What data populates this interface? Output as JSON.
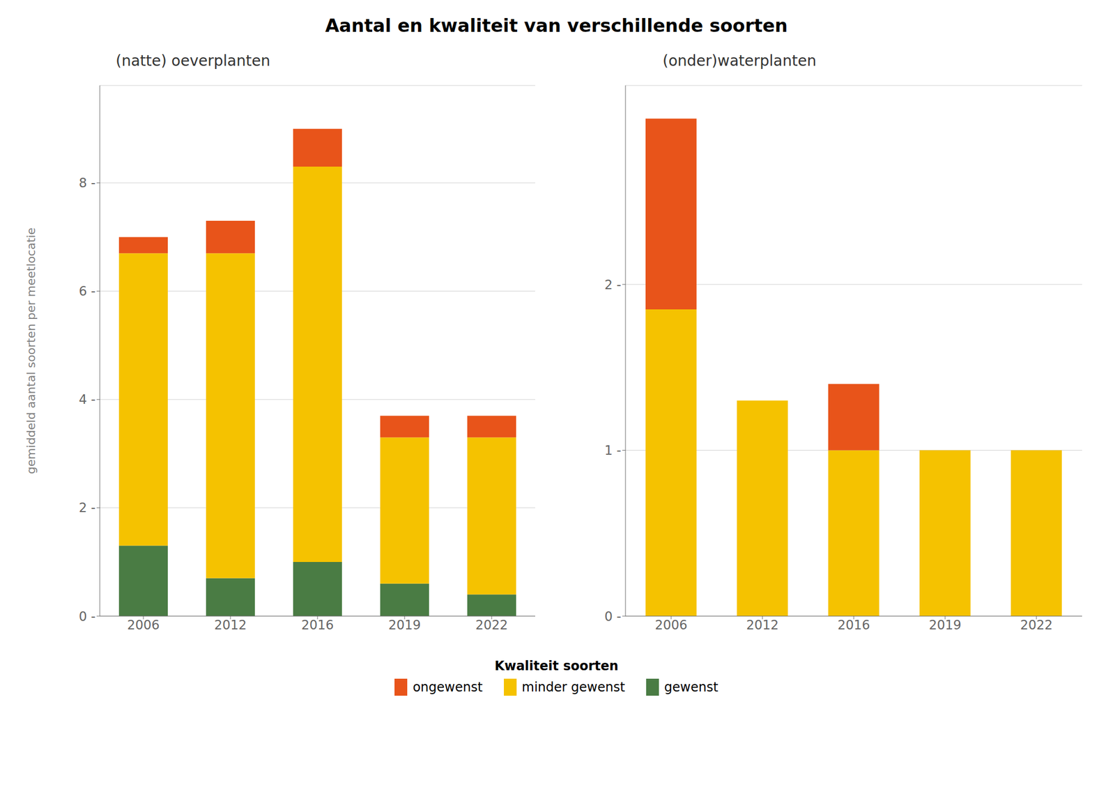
{
  "title": "Aantal en kwaliteit van verschillende soorten",
  "legend": "bottom",
  "legend_title": "Kwaliteit soorten",
  "chart_data": [
    {
      "type": "bar",
      "stacked": true,
      "grid": true,
      "subtitle": "(natte) oeverplanten",
      "ylabel": "gemiddeld aantal soorten per meetlocatie",
      "categories": [
        "2006",
        "2012",
        "2016",
        "2019",
        "2022"
      ],
      "series": [
        {
          "name": "gewenst",
          "color": "#4A7C44",
          "values": [
            1.3,
            0.7,
            1.0,
            0.6,
            0.4
          ]
        },
        {
          "name": "minder gewenst",
          "color": "#F5C200",
          "values": [
            5.4,
            6.0,
            7.3,
            2.7,
            2.9
          ]
        },
        {
          "name": "ongewenst",
          "color": "#E8541A",
          "values": [
            0.3,
            0.6,
            0.7,
            0.4,
            0.4
          ]
        }
      ],
      "ylim": [
        0,
        9.8
      ],
      "yticks": [
        {
          "value": 0,
          "label": "0 -"
        },
        {
          "value": 2,
          "label": "2 -"
        },
        {
          "value": 4,
          "label": "4 -"
        },
        {
          "value": 6,
          "label": "6 -"
        },
        {
          "value": 8,
          "label": "8 -"
        }
      ]
    },
    {
      "type": "bar",
      "stacked": true,
      "grid": true,
      "subtitle": "(onder)waterplanten",
      "categories": [
        "2006",
        "2012",
        "2016",
        "2019",
        "2022"
      ],
      "series": [
        {
          "name": "gewenst",
          "color": "#4A7C44",
          "values": [
            0.0,
            0.0,
            0.0,
            0.0,
            0.0
          ]
        },
        {
          "name": "minder gewenst",
          "color": "#F5C200",
          "values": [
            1.85,
            1.3,
            1.0,
            1.0,
            1.0
          ]
        },
        {
          "name": "ongewenst",
          "color": "#E8541A",
          "values": [
            1.15,
            0.0,
            0.4,
            0.0,
            0.0
          ]
        }
      ],
      "ylim": [
        0,
        3.2
      ],
      "yticks": [
        {
          "value": 0,
          "label": "0 -"
        },
        {
          "value": 1,
          "label": "1 -"
        },
        {
          "value": 2,
          "label": "2 -"
        }
      ]
    }
  ]
}
